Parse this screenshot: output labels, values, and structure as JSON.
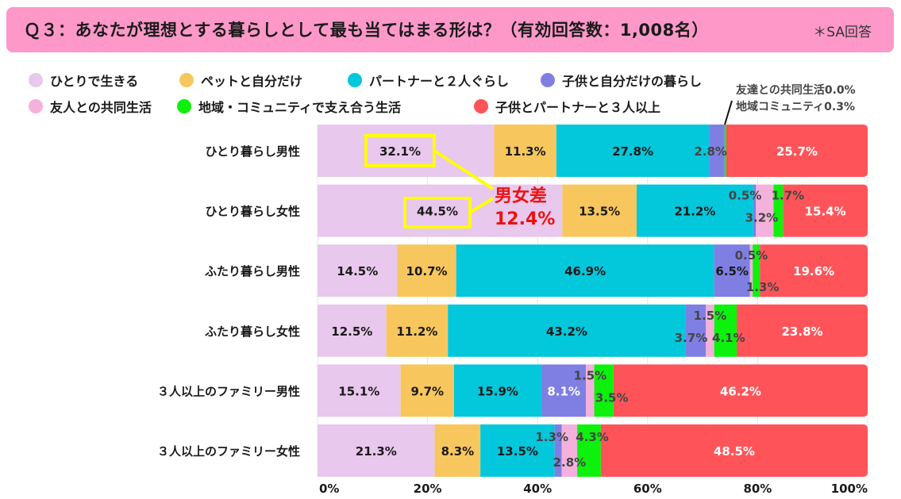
{
  "header": {
    "title": "Ｑ３：あなたが理想とする暮らしとして最も当てはまる形は？（有効回答数：1,008名）",
    "note": "＊SA回答"
  },
  "annotations": {
    "small_values_line1": "友達との共同生活0.0%",
    "small_values_line2": "地域コミュニティ0.3%",
    "gender_gap_line1": "男女差",
    "gender_gap_line2": "12.4%"
  },
  "colors": {
    "title_bg": "#fd98c9",
    "highlight_box": "#ffff00",
    "gap_text": "#ee1111"
  },
  "chart_data": {
    "type": "bar",
    "orientation": "horizontal",
    "stacked": true,
    "categories": [
      "ひとり暮らし男性",
      "ひとり暮らし女性",
      "ふたり暮らし男性",
      "ふたり暮らし女性",
      "３人以上のファミリー男性",
      "３人以上のファミリー女性"
    ],
    "series": [
      {
        "name": "ひとりで生きる",
        "color": "#e8c8ec",
        "values": [
          32.1,
          44.5,
          14.5,
          12.5,
          15.1,
          21.3
        ]
      },
      {
        "name": "ペットと自分だけ",
        "color": "#f7c75d",
        "values": [
          11.3,
          13.5,
          10.7,
          11.2,
          9.7,
          8.3
        ]
      },
      {
        "name": "パートナーと２人ぐらし",
        "color": "#03c7db",
        "values": [
          27.8,
          21.2,
          46.9,
          43.2,
          15.9,
          13.5
        ]
      },
      {
        "name": "子供と自分だけの暮らし",
        "color": "#7f7fe3",
        "values": [
          2.8,
          0.5,
          6.5,
          3.7,
          8.1,
          1.3
        ]
      },
      {
        "name": "友人との共同生活",
        "color": "#f3b1db",
        "values": [
          0.0,
          3.2,
          0.5,
          1.5,
          1.5,
          2.8
        ]
      },
      {
        "name": "地域・コミュニティで支え合う生活",
        "color": "#0df10d",
        "values": [
          0.3,
          1.7,
          1.3,
          4.1,
          3.5,
          4.3
        ]
      },
      {
        "name": "子供とパートナーと３人以上",
        "color": "#fe5459",
        "values": [
          25.7,
          15.4,
          19.6,
          23.8,
          46.2,
          48.5
        ]
      }
    ],
    "data_labels": [
      [
        "32.1%",
        "11.3%",
        "27.8%",
        "2.8%",
        "",
        "",
        "25.7%"
      ],
      [
        "44.5%",
        "13.5%",
        "21.2%",
        "0.5%",
        "3.2%",
        "1.7%",
        "15.4%"
      ],
      [
        "14.5%",
        "10.7%",
        "46.9%",
        "6.5%",
        "0.5%",
        "1.3%",
        "19.6%"
      ],
      [
        "12.5%",
        "11.2%",
        "43.2%",
        "3.7%",
        "1.5%",
        "4.1%",
        "23.8%"
      ],
      [
        "15.1%",
        "9.7%",
        "15.9%",
        "8.1%",
        "1.5%",
        "3.5%",
        "46.2%"
      ],
      [
        "21.3%",
        "8.3%",
        "13.5%",
        "1.3%",
        "2.8%",
        "4.3%",
        "48.5%"
      ]
    ],
    "xlim": [
      0,
      100
    ],
    "x_ticks": [
      "0%",
      "20%",
      "40%",
      "60%",
      "80%",
      "100%"
    ],
    "x_tick_values": [
      0,
      20,
      40,
      60,
      80,
      100
    ],
    "grid": true,
    "legend": "top",
    "title": "",
    "xlabel": "",
    "ylabel": ""
  }
}
